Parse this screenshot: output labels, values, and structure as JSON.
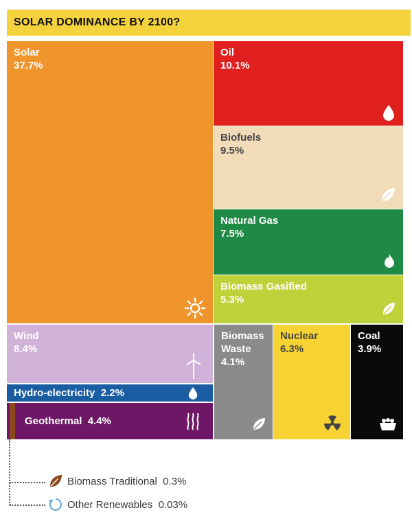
{
  "title": "SOLAR DOMINANCE BY 2100?",
  "chart_data": {
    "type": "treemap",
    "title": "SOLAR DOMINANCE BY 2100?",
    "unit": "%",
    "items": [
      {
        "name": "Solar",
        "value_label": "37.7%",
        "value": 37.7,
        "color": "#f0952b",
        "icon": "sun-icon"
      },
      {
        "name": "Oil",
        "value_label": "10.1%",
        "value": 10.1,
        "color": "#e01f1f",
        "icon": "oil-drop-icon"
      },
      {
        "name": "Biofuels",
        "value_label": "9.5%",
        "value": 9.5,
        "color": "#f2dbb8",
        "icon": "leaf-icon"
      },
      {
        "name": "Natural Gas",
        "value_label": "7.5%",
        "value": 7.5,
        "color": "#1f8a45",
        "icon": "flame-icon"
      },
      {
        "name": "Biomass Gasified",
        "value_label": "5.3%",
        "value": 5.3,
        "color": "#bfd23a",
        "icon": "leaf-icon"
      },
      {
        "name": "Wind",
        "value_label": "8.4%",
        "value": 8.4,
        "color": "#d0b2d8",
        "icon": "wind-turbine-icon"
      },
      {
        "name": "Biomass Waste",
        "value_label": "4.1%",
        "value": 4.1,
        "color": "#8a8a8a",
        "icon": "leaf-icon"
      },
      {
        "name": "Nuclear",
        "value_label": "6.3%",
        "value": 6.3,
        "color": "#f6d233",
        "icon": "radiation-icon"
      },
      {
        "name": "Coal",
        "value_label": "3.9%",
        "value": 3.9,
        "color": "#0a0a0a",
        "icon": "coal-cart-icon"
      },
      {
        "name": "Hydro-electricity",
        "value_label": "2.2%",
        "value": 2.2,
        "color": "#1a5da3",
        "icon": "water-drop-icon"
      },
      {
        "name": "Geothermal",
        "value_label": "4.4%",
        "value": 4.4,
        "color": "#6e1766",
        "icon": "heat-icon"
      },
      {
        "name": "Biomass Traditional",
        "value_label": "0.3%",
        "value": 0.3,
        "color": "#8b4a1c",
        "icon": "leaf-brown-icon"
      },
      {
        "name": "Other Renewables",
        "value_label": "0.03%",
        "value": 0.03,
        "color": "#5aa5d6",
        "icon": "cycle-icon"
      }
    ]
  },
  "labels": {
    "solar": {
      "name": "Solar",
      "value": "37.7%"
    },
    "oil": {
      "name": "Oil",
      "value": "10.1%"
    },
    "biofuels": {
      "name": "Biofuels",
      "value": "9.5%"
    },
    "natural_gas": {
      "name": "Natural Gas",
      "value": "7.5%"
    },
    "biomass_gasified": {
      "name": "Biomass Gasified",
      "value": "5.3%"
    },
    "wind": {
      "name": "Wind",
      "value": "8.4%"
    },
    "biomass_waste": {
      "name_line1": "Biomass",
      "name_line2": "Waste",
      "value": "4.1%"
    },
    "nuclear": {
      "name": "Nuclear",
      "value": "6.3%"
    },
    "coal": {
      "name": "Coal",
      "value": "3.9%"
    },
    "hydro": {
      "name": "Hydro-electricity",
      "value": "2.2%"
    },
    "geothermal": {
      "name": "Geothermal",
      "value": "4.4%"
    },
    "biomass_traditional": {
      "name": "Biomass Traditional",
      "value": "0.3%"
    },
    "other_renewables": {
      "name": "Other Renewables",
      "value": "0.03%"
    }
  }
}
